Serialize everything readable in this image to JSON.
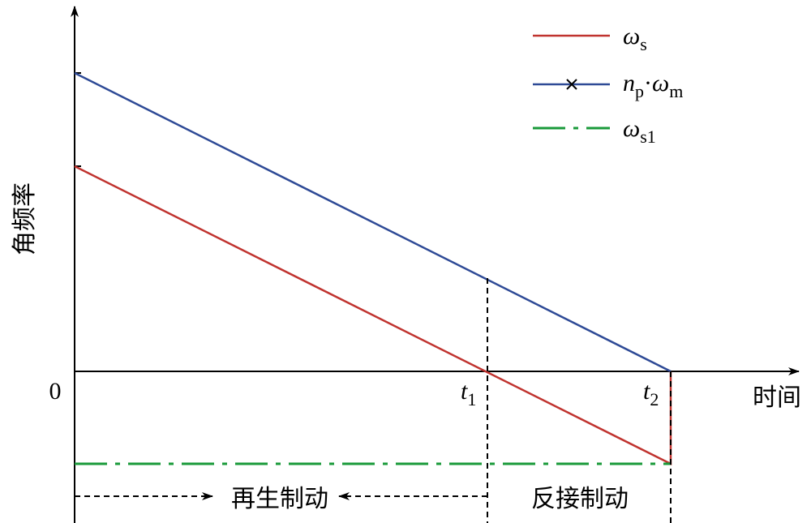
{
  "axes": {
    "y_label": "角频率",
    "x_label": "时间",
    "origin": "0",
    "t1": {
      "symbol": "t",
      "sub": "1"
    },
    "t2": {
      "symbol": "t",
      "sub": "2"
    }
  },
  "legend": [
    {
      "symbol": "ω",
      "sub": "s"
    },
    {
      "symbol": "n",
      "sub": "p",
      "dot": "·",
      "symbol2": "ω",
      "sub2": "m"
    },
    {
      "symbol": "ω",
      "sub": "s1"
    }
  ],
  "regions": [
    "再生制动",
    "反接制动"
  ]
}
